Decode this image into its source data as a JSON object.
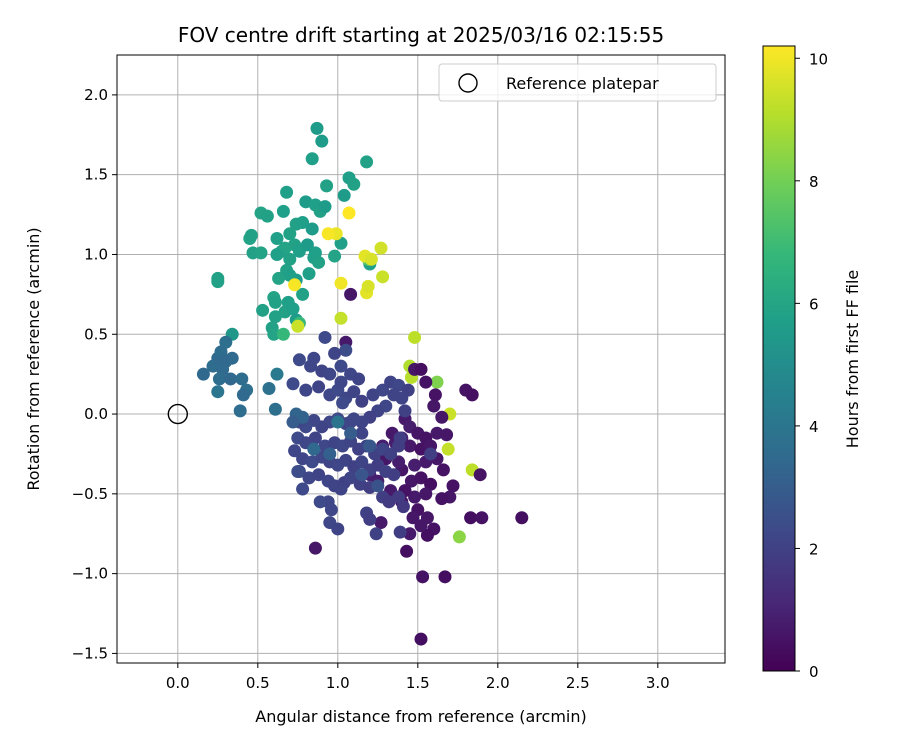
{
  "chart_data": {
    "type": "scatter",
    "title": "FOV centre drift starting at 2025/03/16 02:15:55",
    "xlabel": "Angular distance from reference (arcmin)",
    "ylabel": "Rotation from reference (arcmin)",
    "xlim": [
      -0.38,
      3.42
    ],
    "ylim": [
      -1.56,
      2.25
    ],
    "xticks": [
      0.0,
      0.5,
      1.0,
      1.5,
      2.0,
      2.5,
      3.0
    ],
    "xtick_labels": [
      "0.0",
      "0.5",
      "1.0",
      "1.5",
      "2.0",
      "2.5",
      "3.0"
    ],
    "yticks": [
      -1.5,
      -1.0,
      -0.5,
      0.0,
      0.5,
      1.0,
      1.5,
      2.0
    ],
    "ytick_labels": [
      "−1.5",
      "−1.0",
      "−0.5",
      "0.0",
      "0.5",
      "1.0",
      "1.5",
      "2.0"
    ],
    "grid": true,
    "legend": {
      "placement": "top-right",
      "entries": [
        "Reference platepar"
      ]
    },
    "reference_point": {
      "x": 0.0,
      "y": 0.0,
      "marker": "open-circle"
    },
    "colorbar": {
      "label": "Hours from first FF file",
      "min": 0,
      "max": 10.2,
      "ticks": [
        0,
        2,
        4,
        6,
        8,
        10
      ],
      "tick_labels": [
        "0",
        "2",
        "4",
        "6",
        "8",
        "10"
      ],
      "colormap": "viridis"
    },
    "colormap_stops": [
      "#440154",
      "#482878",
      "#3e4989",
      "#31688e",
      "#26828e",
      "#1f9e89",
      "#35b779",
      "#6ece58",
      "#b5de2b",
      "#fde725"
    ],
    "points": [
      [
        0.87,
        1.79,
        5.6
      ],
      [
        0.9,
        1.71,
        5.6
      ],
      [
        0.84,
        1.6,
        5.7
      ],
      [
        1.18,
        1.58,
        5.8
      ],
      [
        1.07,
        1.48,
        5.7
      ],
      [
        1.1,
        1.44,
        5.8
      ],
      [
        0.93,
        1.43,
        5.8
      ],
      [
        1.04,
        1.37,
        5.6
      ],
      [
        0.68,
        1.39,
        5.7
      ],
      [
        0.8,
        1.33,
        5.6
      ],
      [
        0.86,
        1.31,
        5.7
      ],
      [
        0.89,
        1.27,
        5.8
      ],
      [
        0.92,
        1.3,
        5.6
      ],
      [
        0.66,
        1.27,
        5.7
      ],
      [
        0.52,
        1.26,
        5.9
      ],
      [
        0.56,
        1.24,
        5.8
      ],
      [
        0.74,
        1.19,
        5.8
      ],
      [
        0.78,
        1.2,
        5.7
      ],
      [
        0.84,
        1.16,
        5.6
      ],
      [
        0.7,
        1.13,
        5.8
      ],
      [
        0.45,
        1.1,
        5.9
      ],
      [
        0.46,
        1.12,
        5.8
      ],
      [
        0.62,
        1.1,
        5.7
      ],
      [
        0.65,
        1.02,
        5.8
      ],
      [
        0.67,
        1.04,
        5.9
      ],
      [
        0.73,
        1.06,
        5.8
      ],
      [
        0.76,
        1.02,
        5.7
      ],
      [
        0.81,
        1.06,
        5.6
      ],
      [
        0.62,
        1.0,
        5.7
      ],
      [
        0.47,
        1.01,
        5.8
      ],
      [
        0.52,
        1.01,
        5.9
      ],
      [
        0.7,
        0.97,
        5.8
      ],
      [
        0.85,
        0.98,
        5.7
      ],
      [
        0.86,
        1.01,
        5.7
      ],
      [
        0.98,
        0.99,
        5.9
      ],
      [
        1.02,
        1.07,
        5.7
      ],
      [
        0.88,
        0.95,
        5.8
      ],
      [
        0.68,
        0.9,
        5.8
      ],
      [
        0.82,
        0.88,
        5.7
      ],
      [
        0.74,
        0.84,
        5.6
      ],
      [
        0.7,
        0.87,
        5.7
      ],
      [
        0.63,
        0.85,
        5.9
      ],
      [
        0.25,
        0.85,
        5.8
      ],
      [
        0.25,
        0.83,
        5.8
      ],
      [
        0.78,
        0.75,
        5.8
      ],
      [
        0.6,
        0.73,
        5.9
      ],
      [
        0.61,
        0.7,
        5.8
      ],
      [
        0.69,
        0.7,
        5.7
      ],
      [
        0.67,
        0.64,
        5.8
      ],
      [
        0.72,
        0.66,
        5.7
      ],
      [
        0.61,
        0.61,
        5.8
      ],
      [
        0.74,
        0.59,
        5.6
      ],
      [
        0.53,
        0.65,
        5.8
      ],
      [
        0.59,
        0.54,
        5.8
      ],
      [
        0.6,
        0.5,
        5.9
      ],
      [
        0.66,
        0.5,
        6.8
      ],
      [
        0.76,
        0.57,
        6.8
      ],
      [
        0.34,
        0.5,
        5.4
      ],
      [
        1.2,
        0.94,
        5.7
      ],
      [
        1.19,
        0.97,
        7.5
      ],
      [
        0.99,
        1.13,
        9.9
      ],
      [
        1.07,
        1.26,
        10.2
      ],
      [
        0.94,
        1.13,
        10.1
      ],
      [
        1.27,
        1.04,
        9.5
      ],
      [
        1.17,
        0.99,
        9.8
      ],
      [
        1.21,
        0.97,
        9.6
      ],
      [
        1.28,
        0.86,
        9.4
      ],
      [
        1.02,
        0.82,
        10.0
      ],
      [
        1.18,
        0.76,
        9.8
      ],
      [
        1.19,
        0.8,
        9.6
      ],
      [
        1.02,
        0.6,
        9.3
      ],
      [
        0.73,
        0.81,
        10.1
      ],
      [
        0.75,
        0.55,
        9.4
      ],
      [
        1.48,
        0.48,
        9.2
      ],
      [
        1.45,
        0.3,
        9.0
      ],
      [
        1.62,
        0.2,
        8.2
      ],
      [
        1.46,
        0.23,
        9.1
      ],
      [
        1.7,
        0.0,
        9.4
      ],
      [
        1.69,
        -0.22,
        9.3
      ],
      [
        1.84,
        -0.35,
        9.2
      ],
      [
        1.76,
        -0.77,
        8.4
      ],
      [
        1.08,
        0.75,
        0.6
      ],
      [
        1.05,
        0.45,
        0.7
      ],
      [
        1.48,
        0.28,
        0.6
      ],
      [
        1.52,
        0.28,
        0.4
      ],
      [
        1.55,
        0.2,
        0.5
      ],
      [
        1.8,
        0.15,
        0.5
      ],
      [
        1.84,
        0.12,
        0.4
      ],
      [
        1.61,
        0.12,
        0.5
      ],
      [
        1.6,
        0.05,
        0.6
      ],
      [
        1.65,
        -0.02,
        0.6
      ],
      [
        1.42,
        -0.03,
        0.7
      ],
      [
        1.45,
        -0.08,
        0.8
      ],
      [
        1.5,
        -0.12,
        0.6
      ],
      [
        1.55,
        -0.15,
        0.5
      ],
      [
        1.62,
        -0.12,
        0.7
      ],
      [
        1.68,
        -0.13,
        0.6
      ],
      [
        1.4,
        -0.15,
        0.9
      ],
      [
        1.36,
        -0.18,
        0.8
      ],
      [
        1.45,
        -0.2,
        0.7
      ],
      [
        1.52,
        -0.22,
        0.5
      ],
      [
        1.58,
        -0.2,
        0.6
      ],
      [
        1.62,
        -0.28,
        0.6
      ],
      [
        1.66,
        -0.35,
        0.5
      ],
      [
        1.55,
        -0.3,
        0.7
      ],
      [
        1.48,
        -0.32,
        0.8
      ],
      [
        1.4,
        -0.35,
        0.6
      ],
      [
        1.46,
        -0.42,
        0.6
      ],
      [
        1.52,
        -0.4,
        0.5
      ],
      [
        1.58,
        -0.44,
        0.4
      ],
      [
        1.72,
        -0.45,
        0.5
      ],
      [
        1.7,
        -0.52,
        0.6
      ],
      [
        1.65,
        -0.53,
        0.5
      ],
      [
        1.55,
        -0.5,
        0.6
      ],
      [
        1.48,
        -0.52,
        0.7
      ],
      [
        1.4,
        -0.55,
        0.6
      ],
      [
        1.42,
        -0.48,
        0.5
      ],
      [
        1.5,
        -0.6,
        0.5
      ],
      [
        1.56,
        -0.65,
        0.6
      ],
      [
        1.6,
        -0.72,
        0.5
      ],
      [
        1.56,
        -0.76,
        0.4
      ],
      [
        1.52,
        -0.7,
        0.6
      ],
      [
        1.45,
        -0.75,
        0.7
      ],
      [
        1.47,
        -0.65,
        0.6
      ],
      [
        1.83,
        -0.65,
        0.4
      ],
      [
        1.9,
        -0.65,
        0.5
      ],
      [
        2.15,
        -0.65,
        0.4
      ],
      [
        1.89,
        -0.38,
        0.5
      ],
      [
        1.43,
        -0.86,
        0.4
      ],
      [
        1.53,
        -1.02,
        0.5
      ],
      [
        1.67,
        -1.02,
        0.4
      ],
      [
        1.52,
        -1.41,
        0.4
      ],
      [
        0.86,
        -0.84,
        0.6
      ],
      [
        1.27,
        -0.68,
        0.7
      ],
      [
        1.2,
        -0.38,
        0.9
      ],
      [
        1.25,
        -0.42,
        0.8
      ],
      [
        1.33,
        -0.48,
        0.7
      ],
      [
        1.3,
        -0.28,
        0.6
      ],
      [
        1.34,
        -0.12,
        0.7
      ],
      [
        1.28,
        -0.2,
        0.8
      ],
      [
        1.38,
        -0.3,
        0.8
      ],
      [
        0.92,
        0.48,
        2.3
      ],
      [
        1.05,
        0.4,
        2.4
      ],
      [
        0.98,
        0.38,
        2.1
      ],
      [
        0.85,
        0.35,
        2.2
      ],
      [
        0.76,
        0.34,
        2.3
      ],
      [
        0.83,
        0.3,
        2.2
      ],
      [
        0.9,
        0.27,
        2.1
      ],
      [
        0.95,
        0.25,
        2.2
      ],
      [
        1.02,
        0.3,
        2.3
      ],
      [
        1.08,
        0.25,
        2.2
      ],
      [
        1.13,
        0.22,
        2.1
      ],
      [
        0.72,
        0.19,
        2.3
      ],
      [
        0.8,
        0.15,
        2.2
      ],
      [
        0.88,
        0.17,
        2.1
      ],
      [
        0.95,
        0.12,
        2.2
      ],
      [
        1.0,
        0.15,
        2.3
      ],
      [
        1.05,
        0.1,
        2.2
      ],
      [
        1.1,
        0.14,
        2.1
      ],
      [
        1.15,
        0.08,
        2.0
      ],
      [
        1.22,
        0.12,
        2.1
      ],
      [
        1.28,
        0.15,
        2.2
      ],
      [
        1.33,
        0.2,
        2.1
      ],
      [
        1.38,
        0.18,
        2.2
      ],
      [
        1.44,
        0.15,
        2.0
      ],
      [
        1.4,
        0.1,
        2.1
      ],
      [
        1.3,
        0.05,
        2.2
      ],
      [
        1.25,
        0.02,
        2.1
      ],
      [
        1.2,
        -0.02,
        2.0
      ],
      [
        1.15,
        -0.05,
        2.1
      ],
      [
        1.1,
        -0.03,
        2.2
      ],
      [
        1.05,
        -0.06,
        2.1
      ],
      [
        1.0,
        -0.03,
        2.3
      ],
      [
        0.95,
        -0.05,
        2.2
      ],
      [
        0.9,
        -0.08,
        2.1
      ],
      [
        0.85,
        -0.04,
        2.2
      ],
      [
        0.8,
        -0.08,
        2.3
      ],
      [
        0.76,
        -0.05,
        2.2
      ],
      [
        0.75,
        -0.15,
        2.3
      ],
      [
        0.8,
        -0.18,
        2.2
      ],
      [
        0.86,
        -0.15,
        2.1
      ],
      [
        0.92,
        -0.2,
        2.2
      ],
      [
        0.98,
        -0.18,
        2.1
      ],
      [
        1.03,
        -0.2,
        2.2
      ],
      [
        1.08,
        -0.17,
        2.1
      ],
      [
        1.13,
        -0.22,
        2.0
      ],
      [
        1.18,
        -0.2,
        2.1
      ],
      [
        1.23,
        -0.25,
        2.0
      ],
      [
        1.28,
        -0.22,
        2.1
      ],
      [
        1.33,
        -0.25,
        2.0
      ],
      [
        1.38,
        -0.2,
        1.9
      ],
      [
        0.78,
        -0.28,
        2.2
      ],
      [
        0.84,
        -0.3,
        2.3
      ],
      [
        0.9,
        -0.27,
        2.2
      ],
      [
        0.95,
        -0.3,
        2.1
      ],
      [
        1.0,
        -0.32,
        2.2
      ],
      [
        1.05,
        -0.29,
        2.1
      ],
      [
        1.1,
        -0.33,
        2.0
      ],
      [
        1.15,
        -0.3,
        2.1
      ],
      [
        1.2,
        -0.35,
        2.0
      ],
      [
        1.25,
        -0.32,
        1.9
      ],
      [
        1.3,
        -0.36,
        2.0
      ],
      [
        1.35,
        -0.38,
        1.9
      ],
      [
        0.76,
        -0.36,
        2.3
      ],
      [
        0.82,
        -0.4,
        2.2
      ],
      [
        0.88,
        -0.38,
        2.1
      ],
      [
        0.94,
        -0.42,
        2.2
      ],
      [
        0.98,
        -0.45,
        2.1
      ],
      [
        1.04,
        -0.43,
        2.0
      ],
      [
        1.08,
        -0.4,
        2.1
      ],
      [
        1.14,
        -0.44,
        2.0
      ],
      [
        1.2,
        -0.46,
        1.9
      ],
      [
        0.75,
        -0.36,
        2.4
      ],
      [
        0.94,
        -0.55,
        2.2
      ],
      [
        0.89,
        -0.55,
        2.3
      ],
      [
        1.02,
        -0.47,
        2.1
      ],
      [
        1.28,
        -0.52,
        1.9
      ],
      [
        1.32,
        -0.55,
        1.8
      ],
      [
        1.38,
        -0.52,
        1.8
      ],
      [
        1.41,
        -0.58,
        1.7
      ],
      [
        1.18,
        -0.62,
        2.0
      ],
      [
        1.2,
        -0.66,
        1.9
      ],
      [
        1.24,
        -0.75,
        2.0
      ],
      [
        0.96,
        -0.6,
        2.2
      ],
      [
        0.95,
        -0.68,
        2.2
      ],
      [
        1.0,
        -0.72,
        2.1
      ],
      [
        1.39,
        -0.74,
        1.9
      ],
      [
        1.58,
        -0.25,
        1.9
      ],
      [
        1.42,
        0.02,
        2.0
      ],
      [
        1.35,
        0.12,
        2.1
      ],
      [
        1.39,
        -0.15,
        1.9
      ],
      [
        1.03,
        0.07,
        2.3
      ],
      [
        1.08,
        -0.05,
        2.2
      ],
      [
        0.73,
        -0.23,
        2.2
      ],
      [
        0.78,
        -0.47,
        2.3
      ],
      [
        1.02,
        0.2,
        2.2
      ],
      [
        1.15,
        -0.12,
        2.1
      ],
      [
        0.16,
        0.25,
        3.4
      ],
      [
        0.22,
        0.3,
        3.6
      ],
      [
        0.25,
        0.35,
        3.5
      ],
      [
        0.27,
        0.39,
        3.6
      ],
      [
        0.3,
        0.33,
        3.4
      ],
      [
        0.3,
        0.45,
        3.7
      ],
      [
        0.28,
        0.28,
        3.5
      ],
      [
        0.26,
        0.22,
        3.6
      ],
      [
        0.34,
        0.35,
        3.5
      ],
      [
        0.33,
        0.22,
        3.4
      ],
      [
        0.4,
        0.22,
        3.6
      ],
      [
        0.43,
        0.15,
        3.7
      ],
      [
        0.41,
        0.12,
        3.5
      ],
      [
        0.39,
        0.02,
        3.6
      ],
      [
        0.25,
        0.14,
        4.0
      ],
      [
        0.57,
        0.16,
        3.8
      ],
      [
        0.61,
        0.03,
        3.7
      ],
      [
        0.62,
        0.25,
        4.2
      ],
      [
        0.78,
        -0.02,
        3.2
      ],
      [
        0.74,
        0.0,
        3.3
      ],
      [
        1.0,
        -0.05,
        3.9
      ],
      [
        1.08,
        -0.12,
        3.0
      ],
      [
        1.2,
        -0.2,
        2.8
      ],
      [
        0.95,
        -0.25,
        3.1
      ],
      [
        0.85,
        -0.22,
        3.4
      ],
      [
        1.15,
        -0.38,
        2.7
      ],
      [
        1.25,
        -0.45,
        2.6
      ],
      [
        0.72,
        -0.05,
        3.0
      ]
    ]
  }
}
